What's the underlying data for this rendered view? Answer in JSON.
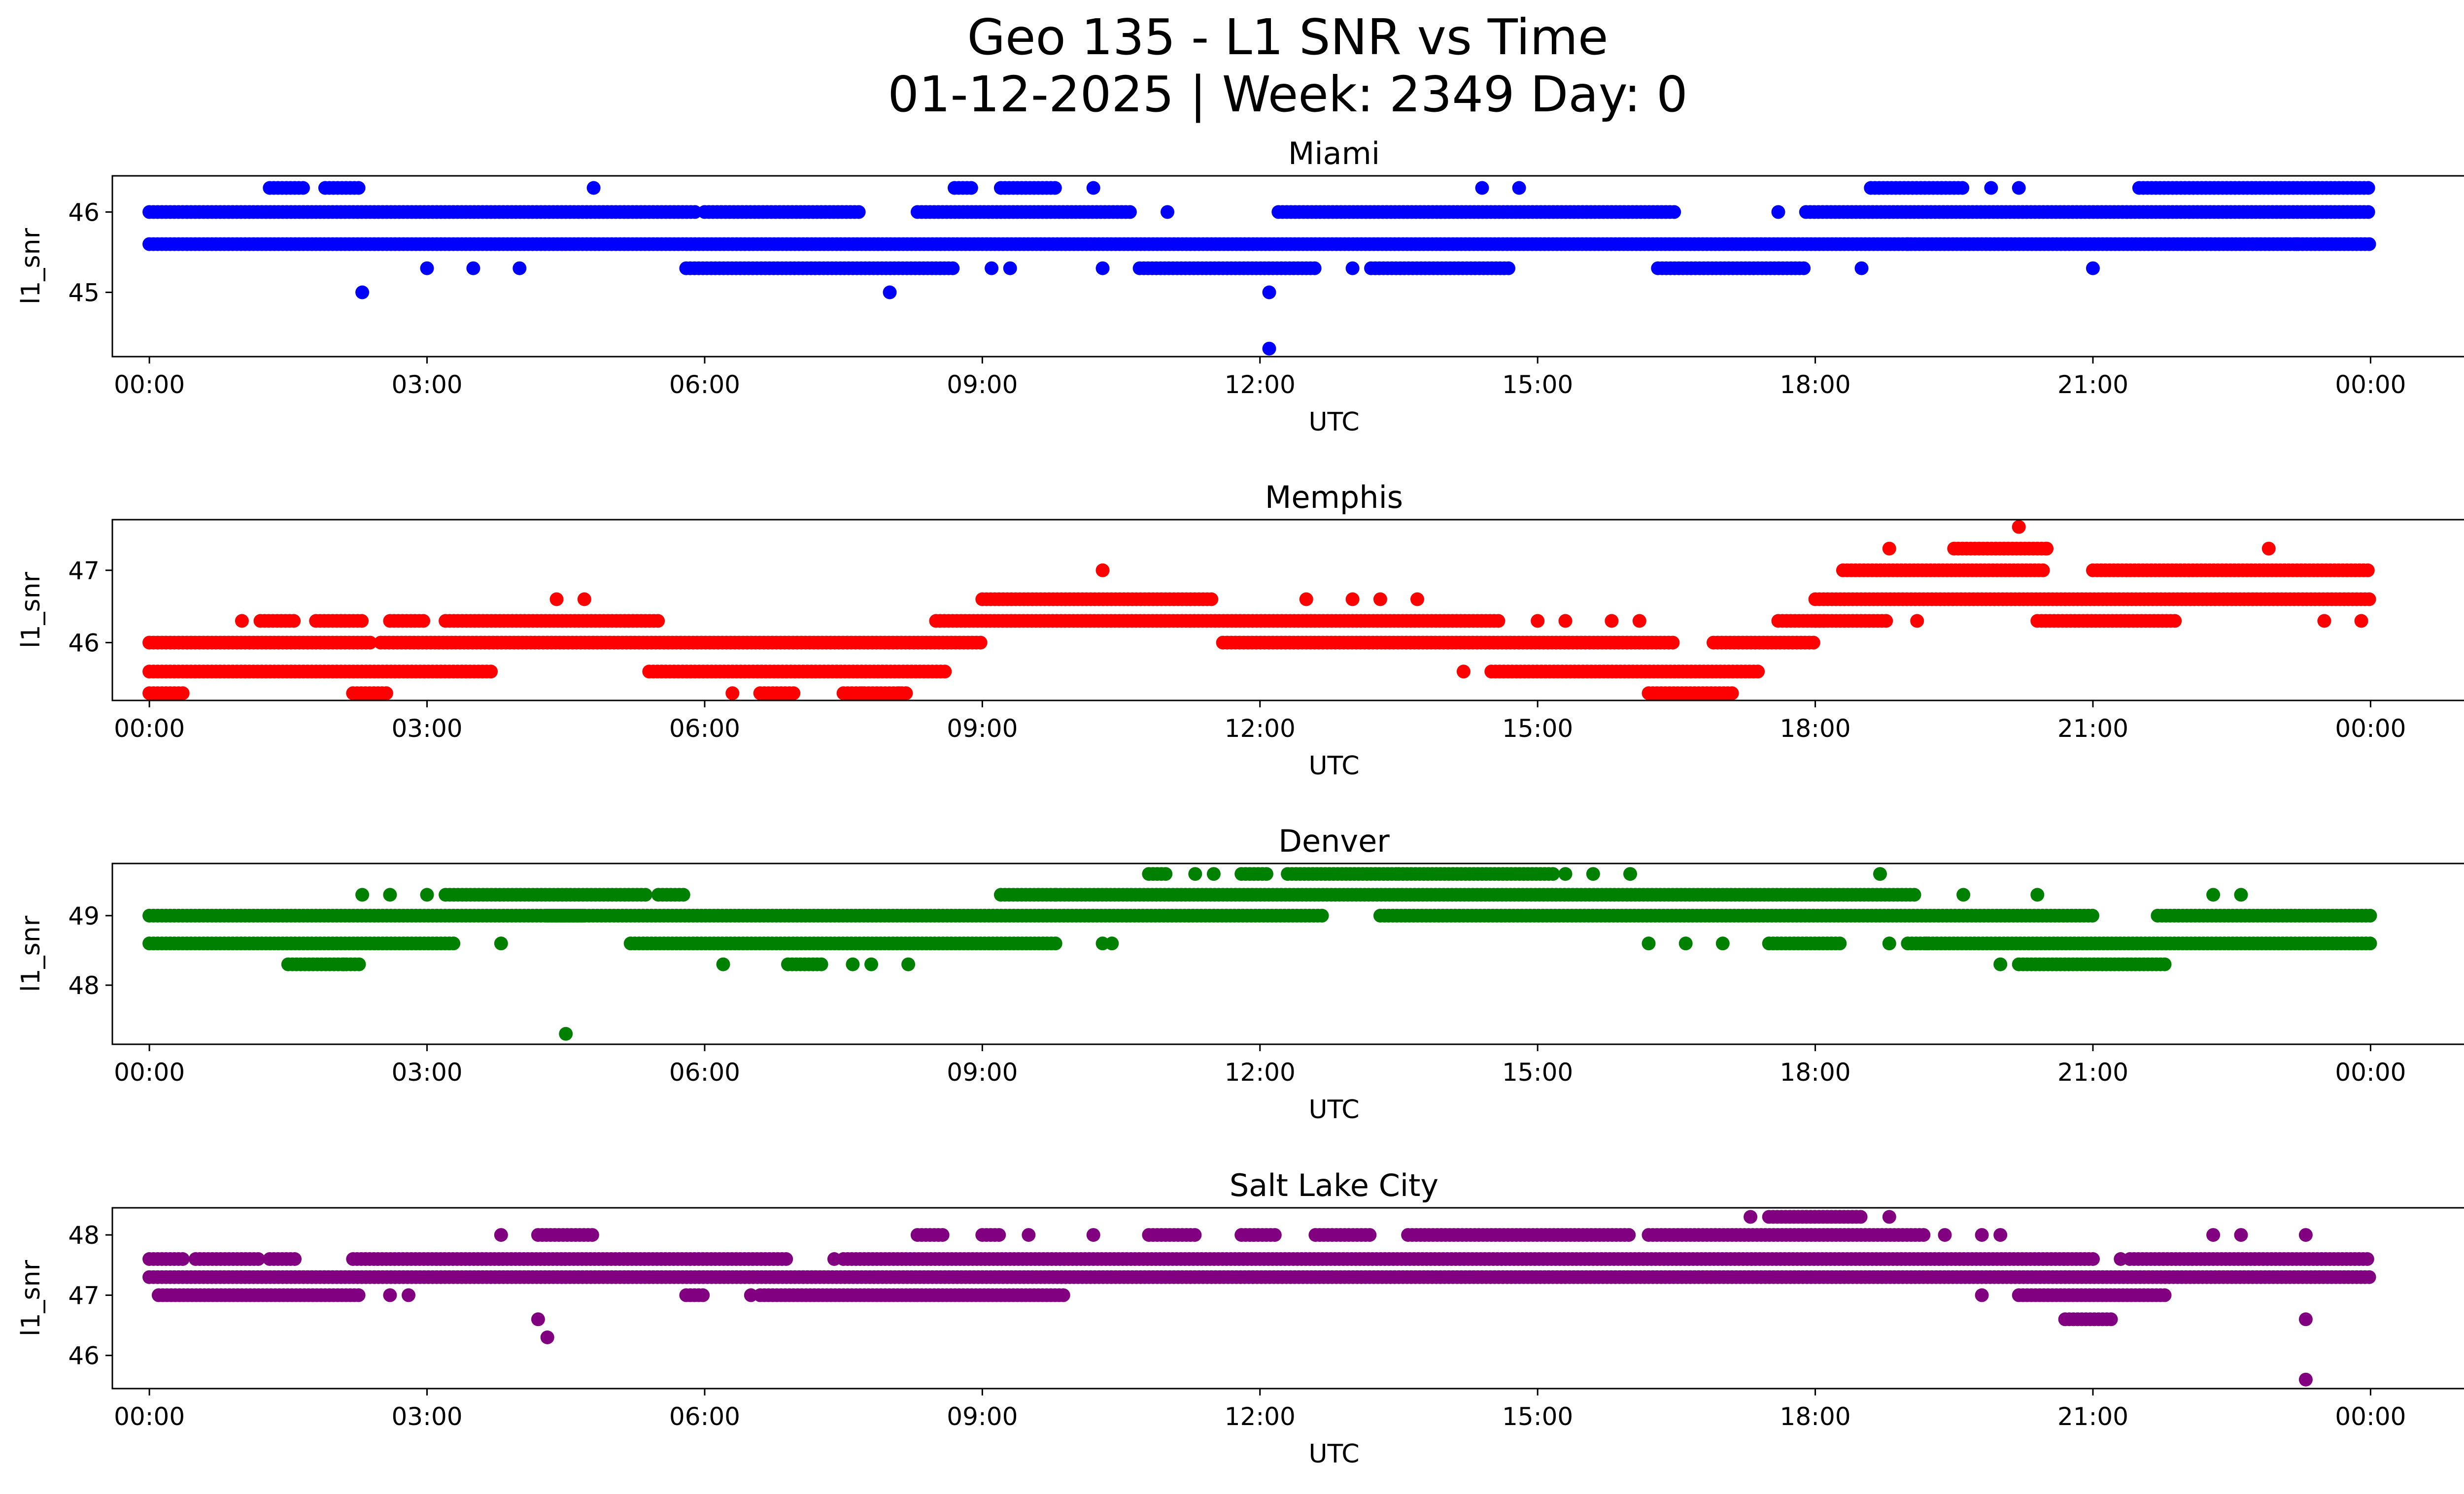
{
  "figure": {
    "title_line1": "Geo 135 - L1 SNR vs Time",
    "title_line2": "01-12-2025 | Week: 2349 Day: 0"
  },
  "chart_data": [
    {
      "type": "scatter",
      "title": "Miami",
      "xlabel": "UTC",
      "ylabel": "l1_snr",
      "color": "#0000ff",
      "x_unit": "hours UTC",
      "xlim": [
        -0.4,
        26.0
      ],
      "ylim": [
        44.2,
        46.45
      ],
      "x_ticks": [
        0,
        3,
        6,
        9,
        12,
        15,
        18,
        21,
        24
      ],
      "x_tick_labels": [
        "00:00",
        "03:00",
        "06:00",
        "09:00",
        "12:00",
        "15:00",
        "18:00",
        "21:00",
        "00:00"
      ],
      "y_ticks": [
        45,
        46
      ],
      "y_tick_labels": [
        "45",
        "46"
      ],
      "levels": [
        46.3,
        46.0,
        45.6,
        45.3,
        45.0,
        44.3
      ],
      "runs": [
        [
          46.0,
          0.0,
          5.9
        ],
        [
          46.0,
          6.0,
          7.7
        ],
        [
          46.0,
          8.3,
          10.6
        ],
        [
          46.0,
          12.2,
          16.5
        ],
        [
          46.0,
          17.9,
          24.0
        ],
        [
          45.6,
          0.0,
          24.0
        ],
        [
          45.3,
          5.8,
          8.7
        ],
        [
          45.3,
          10.7,
          12.6
        ],
        [
          45.3,
          13.2,
          14.7
        ],
        [
          45.3,
          16.3,
          17.9
        ],
        [
          46.3,
          1.3,
          1.7
        ],
        [
          46.3,
          1.9,
          2.3
        ],
        [
          46.3,
          8.7,
          8.9
        ],
        [
          46.3,
          9.2,
          9.8
        ],
        [
          46.3,
          18.6,
          19.6
        ],
        [
          46.3,
          21.5,
          24.0
        ]
      ],
      "points": [
        [
          4.8,
          46.3
        ],
        [
          10.2,
          46.3
        ],
        [
          14.4,
          46.3
        ],
        [
          14.8,
          46.3
        ],
        [
          19.9,
          46.3
        ],
        [
          20.2,
          46.3
        ],
        [
          11.0,
          46.0
        ],
        [
          17.6,
          46.0
        ],
        [
          19.0,
          45.6
        ],
        [
          23.2,
          45.6
        ],
        [
          3.0,
          45.3
        ],
        [
          3.5,
          45.3
        ],
        [
          4.0,
          45.3
        ],
        [
          9.1,
          45.3
        ],
        [
          9.3,
          45.3
        ],
        [
          10.3,
          45.3
        ],
        [
          13.0,
          45.3
        ],
        [
          18.5,
          45.3
        ],
        [
          21.0,
          45.3
        ],
        [
          2.3,
          45.0
        ],
        [
          8.0,
          45.0
        ],
        [
          12.1,
          45.0
        ],
        [
          12.1,
          44.3
        ]
      ]
    },
    {
      "type": "scatter",
      "title": "Memphis",
      "xlabel": "UTC",
      "ylabel": "l1_snr",
      "color": "#ff0000",
      "x_unit": "hours UTC",
      "xlim": [
        -0.4,
        26.0
      ],
      "ylim": [
        45.2,
        47.7
      ],
      "x_ticks": [
        0,
        3,
        6,
        9,
        12,
        15,
        18,
        21,
        24
      ],
      "x_tick_labels": [
        "00:00",
        "03:00",
        "06:00",
        "09:00",
        "12:00",
        "15:00",
        "18:00",
        "21:00",
        "00:00"
      ],
      "y_ticks": [
        46,
        47
      ],
      "y_tick_labels": [
        "46",
        "47"
      ],
      "levels": [
        47.6,
        47.3,
        47.0,
        46.6,
        46.3,
        46.0,
        45.6,
        45.3
      ],
      "runs": [
        [
          46.0,
          0.0,
          2.4
        ],
        [
          46.0,
          2.5,
          9.0
        ],
        [
          46.0,
          11.6,
          16.5
        ],
        [
          46.0,
          16.9,
          18.0
        ],
        [
          45.6,
          0.0,
          3.7
        ],
        [
          45.6,
          5.4,
          8.6
        ],
        [
          45.6,
          14.5,
          17.4
        ],
        [
          45.3,
          0.0,
          0.4
        ],
        [
          45.3,
          2.2,
          2.6
        ],
        [
          45.3,
          6.6,
          7.0
        ],
        [
          45.3,
          7.5,
          8.2
        ],
        [
          45.3,
          16.2,
          17.1
        ],
        [
          46.3,
          1.2,
          1.6
        ],
        [
          46.3,
          1.8,
          2.3
        ],
        [
          46.3,
          2.6,
          3.0
        ],
        [
          46.3,
          3.2,
          5.5
        ],
        [
          46.3,
          8.5,
          14.6
        ],
        [
          46.3,
          17.6,
          18.1
        ],
        [
          46.3,
          18.0,
          18.8
        ],
        [
          46.3,
          20.4,
          21.9
        ],
        [
          46.6,
          9.0,
          11.5
        ],
        [
          46.6,
          18.0,
          24.0
        ],
        [
          47.0,
          18.3,
          20.5
        ],
        [
          47.0,
          21.0,
          24.0
        ],
        [
          47.3,
          19.5,
          20.5
        ]
      ],
      "points": [
        [
          1.0,
          46.3
        ],
        [
          15.0,
          46.3
        ],
        [
          15.3,
          46.3
        ],
        [
          15.8,
          46.3
        ],
        [
          16.1,
          46.3
        ],
        [
          19.1,
          46.3
        ],
        [
          23.5,
          46.3
        ],
        [
          23.9,
          46.3
        ],
        [
          12.5,
          46.6
        ],
        [
          13.0,
          46.6
        ],
        [
          13.3,
          46.6
        ],
        [
          13.7,
          46.6
        ],
        [
          10.3,
          47.0
        ],
        [
          18.8,
          47.3
        ],
        [
          20.5,
          47.3
        ],
        [
          22.9,
          47.3
        ],
        [
          20.2,
          47.6
        ],
        [
          4.4,
          46.6
        ],
        [
          4.7,
          46.6
        ],
        [
          14.2,
          45.6
        ],
        [
          6.3,
          45.3
        ],
        [
          7.7,
          45.3
        ],
        [
          8.1,
          45.3
        ]
      ]
    },
    {
      "type": "scatter",
      "title": "Denver",
      "xlabel": "UTC",
      "ylabel": "l1_snr",
      "color": "#008000",
      "x_unit": "hours UTC",
      "xlim": [
        -0.4,
        26.0
      ],
      "ylim": [
        47.15,
        49.75
      ],
      "x_ticks": [
        0,
        3,
        6,
        9,
        12,
        15,
        18,
        21,
        24
      ],
      "x_tick_labels": [
        "00:00",
        "03:00",
        "06:00",
        "09:00",
        "12:00",
        "15:00",
        "18:00",
        "21:00",
        "00:00"
      ],
      "y_ticks": [
        48,
        49
      ],
      "y_tick_labels": [
        "48",
        "49"
      ],
      "levels": [
        49.6,
        49.3,
        49.0,
        48.6,
        48.3,
        47.3
      ],
      "runs": [
        [
          49.0,
          0.0,
          4.7
        ],
        [
          49.0,
          4.3,
          12.7
        ],
        [
          49.0,
          13.3,
          21.0
        ],
        [
          49.0,
          21.7,
          24.0
        ],
        [
          48.6,
          0.0,
          3.3
        ],
        [
          48.6,
          5.2,
          9.8
        ],
        [
          48.6,
          17.5,
          18.3
        ],
        [
          48.6,
          19.0,
          24.0
        ],
        [
          49.3,
          3.2,
          5.4
        ],
        [
          49.3,
          5.5,
          5.8
        ],
        [
          49.3,
          9.2,
          9.8
        ],
        [
          49.3,
          9.8,
          19.1
        ],
        [
          49.6,
          10.8,
          11.0
        ],
        [
          49.6,
          11.8,
          12.1
        ],
        [
          49.6,
          12.3,
          13.5
        ],
        [
          49.6,
          13.5,
          15.2
        ],
        [
          48.3,
          1.5,
          2.3
        ],
        [
          48.3,
          6.9,
          7.3
        ],
        [
          48.3,
          20.2,
          21.8
        ]
      ],
      "points": [
        [
          2.3,
          49.3
        ],
        [
          2.6,
          49.3
        ],
        [
          3.0,
          49.3
        ],
        [
          20.4,
          49.3
        ],
        [
          22.3,
          49.3
        ],
        [
          22.6,
          49.3
        ],
        [
          19.6,
          49.3
        ],
        [
          11.3,
          49.6
        ],
        [
          11.5,
          49.6
        ],
        [
          15.3,
          49.6
        ],
        [
          15.6,
          49.6
        ],
        [
          16.0,
          49.6
        ],
        [
          18.7,
          49.6
        ],
        [
          3.8,
          48.6
        ],
        [
          10.3,
          48.6
        ],
        [
          10.4,
          48.6
        ],
        [
          16.2,
          48.6
        ],
        [
          16.6,
          48.6
        ],
        [
          17.0,
          48.6
        ],
        [
          18.8,
          48.6
        ],
        [
          19.2,
          48.6
        ],
        [
          6.2,
          48.3
        ],
        [
          7.6,
          48.3
        ],
        [
          7.8,
          48.3
        ],
        [
          8.2,
          48.3
        ],
        [
          2.1,
          48.3
        ],
        [
          20.0,
          48.3
        ],
        [
          4.5,
          47.3
        ]
      ]
    },
    {
      "type": "scatter",
      "title": "Salt Lake City",
      "xlabel": "UTC",
      "ylabel": "l1_snr",
      "color": "#800080",
      "x_unit": "hours UTC",
      "xlim": [
        -0.4,
        26.0
      ],
      "ylim": [
        45.45,
        48.45
      ],
      "x_ticks": [
        0,
        3,
        6,
        9,
        12,
        15,
        18,
        21,
        24
      ],
      "x_tick_labels": [
        "00:00",
        "03:00",
        "06:00",
        "09:00",
        "12:00",
        "15:00",
        "18:00",
        "21:00",
        "00:00"
      ],
      "y_ticks": [
        46,
        47,
        48
      ],
      "y_tick_labels": [
        "46",
        "47",
        "48"
      ],
      "levels": [
        48.3,
        48.0,
        47.6,
        47.3,
        47.0,
        46.6,
        46.3,
        45.6
      ],
      "runs": [
        [
          47.3,
          0.0,
          24.0
        ],
        [
          47.6,
          0.0,
          0.4
        ],
        [
          47.6,
          0.5,
          1.2
        ],
        [
          47.6,
          1.3,
          1.6
        ],
        [
          47.6,
          2.2,
          6.9
        ],
        [
          47.6,
          7.5,
          21.0
        ],
        [
          47.6,
          21.4,
          24.0
        ],
        [
          47.0,
          0.1,
          2.3
        ],
        [
          47.0,
          5.8,
          6.0
        ],
        [
          47.0,
          6.6,
          8.3
        ],
        [
          47.0,
          8.3,
          9.9
        ],
        [
          47.0,
          20.2,
          21.8
        ],
        [
          48.0,
          4.2,
          4.8
        ],
        [
          48.0,
          8.3,
          8.6
        ],
        [
          48.0,
          9.0,
          9.2
        ],
        [
          48.0,
          10.8,
          11.3
        ],
        [
          48.0,
          11.8,
          12.2
        ],
        [
          48.0,
          12.6,
          13.2
        ],
        [
          48.0,
          13.6,
          16.0
        ],
        [
          48.0,
          16.2,
          19.2
        ],
        [
          48.3,
          17.5,
          18.5
        ],
        [
          46.6,
          20.7,
          21.2
        ]
      ],
      "points": [
        [
          4.2,
          46.6
        ],
        [
          23.3,
          46.6
        ],
        [
          4.3,
          46.3
        ],
        [
          23.3,
          45.6
        ],
        [
          3.8,
          48.0
        ],
        [
          9.5,
          48.0
        ],
        [
          10.2,
          48.0
        ],
        [
          19.4,
          48.0
        ],
        [
          19.8,
          48.0
        ],
        [
          20.0,
          48.0
        ],
        [
          22.3,
          48.0
        ],
        [
          22.6,
          48.0
        ],
        [
          23.3,
          48.0
        ],
        [
          17.3,
          48.3
        ],
        [
          18.8,
          48.3
        ],
        [
          2.6,
          47.0
        ],
        [
          2.8,
          47.0
        ],
        [
          6.5,
          47.0
        ],
        [
          19.8,
          47.0
        ],
        [
          7.4,
          47.6
        ],
        [
          21.3,
          47.6
        ]
      ]
    }
  ]
}
